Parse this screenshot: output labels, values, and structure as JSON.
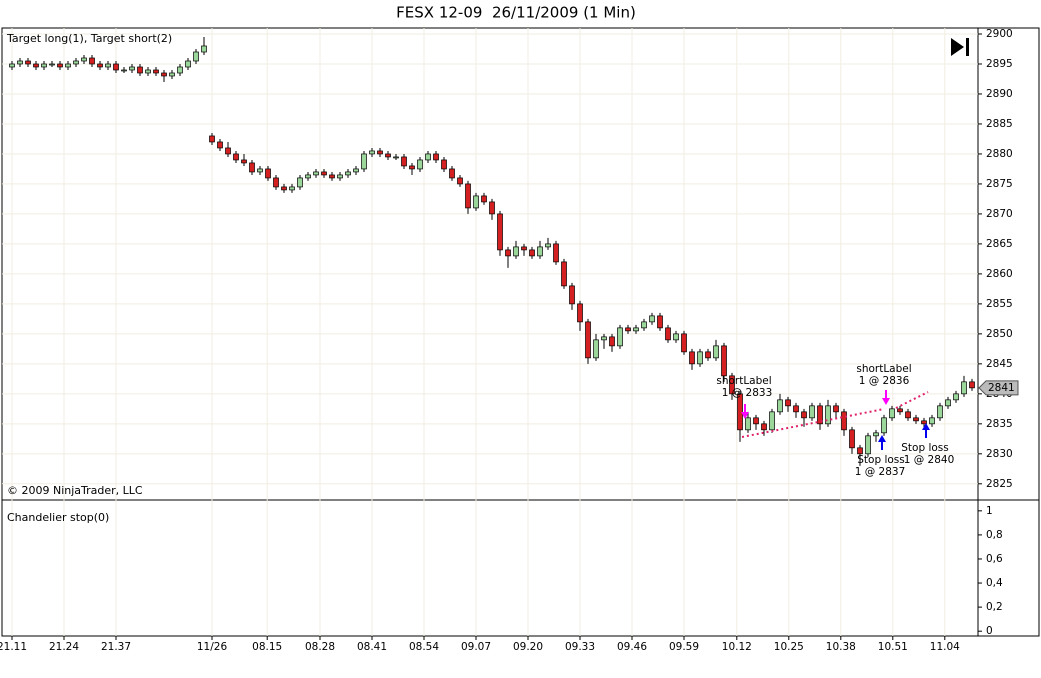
{
  "chart_data": [
    {
      "type": "candlestick",
      "title": "FESX 12-09  26/11/2009 (1 Min)",
      "subtitle": "Target long(1), Target short(2)",
      "credit": "© 2009 NinjaTrader, LLC",
      "up_color": "#9bd69b",
      "down_color": "#d42020",
      "last_price": 2841,
      "annotations": [
        "shortLabel",
        "1 @ 2833",
        "shortLabel",
        "1 @ 2836",
        "Stop loss",
        "1 @ 2837",
        "Stop loss",
        "1 @ 2840"
      ],
      "xlim": [
        -1.25,
        120.75
      ],
      "xticks": [
        {
          "value": 0,
          "label": "21.11"
        },
        {
          "value": 6.5,
          "label": "21.24"
        },
        {
          "value": 13,
          "label": "21.37"
        },
        {
          "value": 25,
          "label": "11/26"
        },
        {
          "value": 31.9,
          "label": "08.15"
        },
        {
          "value": 38.5,
          "label": "08.28"
        },
        {
          "value": 45,
          "label": "08.41"
        },
        {
          "value": 51.5,
          "label": "08.54"
        },
        {
          "value": 58,
          "label": "09.07"
        },
        {
          "value": 64.5,
          "label": "09.20"
        },
        {
          "value": 71,
          "label": "09.33"
        },
        {
          "value": 77.5,
          "label": "09.46"
        },
        {
          "value": 84,
          "label": "09.59"
        },
        {
          "value": 90.6,
          "label": "10.12"
        },
        {
          "value": 97.1,
          "label": "10.25"
        },
        {
          "value": 103.6,
          "label": "10.38"
        },
        {
          "value": 110.1,
          "label": "10.51"
        },
        {
          "value": 116.6,
          "label": "11.04"
        }
      ],
      "ylim": [
        2822.3,
        2901
      ],
      "yticks": [
        2825,
        2830,
        2835,
        2840,
        2845,
        2850,
        2855,
        2860,
        2865,
        2870,
        2875,
        2880,
        2885,
        2890,
        2895,
        2900
      ],
      "grid": true,
      "open": [
        2894.5,
        2895,
        2895.5,
        2895,
        2894.5,
        2895,
        2895,
        2894.5,
        2895,
        2895.5,
        2896,
        2895,
        2894.5,
        2895,
        2894,
        2894,
        2894.5,
        2893.5,
        2894,
        2893.5,
        2893,
        2893.5,
        2894.5,
        2895.5,
        2897,
        2883,
        2882,
        2881,
        2880,
        2879,
        2878.5,
        2877,
        2877.5,
        2876,
        2874.5,
        2874,
        2874.5,
        2876,
        2876.5,
        2877,
        2876.5,
        2876,
        2876.5,
        2877,
        2877.5,
        2880,
        2880.5,
        2880,
        2879.5,
        2879.5,
        2878,
        2877.5,
        2879,
        2880,
        2879,
        2877.5,
        2876,
        2875,
        2871,
        2873,
        2872,
        2870,
        2864,
        2863,
        2864.5,
        2864,
        2863,
        2864.5,
        2865,
        2862,
        2858,
        2855,
        2852,
        2846,
        2849,
        2849.5,
        2848,
        2851,
        2850.5,
        2851,
        2852,
        2853,
        2851,
        2849,
        2850,
        2847,
        2845,
        2847,
        2846,
        2848,
        2843,
        2840,
        2834,
        2836,
        2835,
        2834,
        2837,
        2839,
        2838,
        2837,
        2836,
        2838,
        2835,
        2838,
        2837,
        2834,
        2831,
        2830,
        2833,
        2833.5,
        2836,
        2837.5,
        2837,
        2836,
        2835.5,
        2835,
        2836,
        2838,
        2839,
        2840,
        2842
      ],
      "high": [
        2895.5,
        2896,
        2896,
        2895.5,
        2895.5,
        2895.5,
        2895.5,
        2895.5,
        2896,
        2896.5,
        2896.5,
        2895.5,
        2895.5,
        2895.5,
        2894.5,
        2895,
        2895,
        2894.5,
        2894.5,
        2894,
        2894,
        2895,
        2896,
        2897.5,
        2899.5,
        2883.5,
        2882.5,
        2882,
        2880.5,
        2880,
        2879,
        2878,
        2878,
        2876.5,
        2875,
        2875,
        2876.5,
        2877,
        2877.5,
        2877.5,
        2877,
        2877,
        2877.5,
        2878,
        2880.5,
        2881,
        2881,
        2880.5,
        2880,
        2880,
        2878.5,
        2879.5,
        2880.5,
        2880.5,
        2879.5,
        2878,
        2876.5,
        2875.5,
        2873.5,
        2873.5,
        2872.5,
        2870.5,
        2864.5,
        2865.5,
        2865,
        2864.5,
        2865.5,
        2866,
        2865.5,
        2862.5,
        2858.5,
        2855.5,
        2852.5,
        2850,
        2850,
        2850,
        2851.5,
        2851.5,
        2851.5,
        2852.5,
        2853.5,
        2853.5,
        2851.5,
        2850.5,
        2850.5,
        2847.5,
        2847.5,
        2847.5,
        2849,
        2848.5,
        2843.5,
        2840.5,
        2837,
        2836.5,
        2835.5,
        2837.5,
        2840,
        2839.5,
        2838.5,
        2837.5,
        2838.5,
        2838.5,
        2839,
        2838.5,
        2837.5,
        2834.5,
        2831.5,
        2833.5,
        2834,
        2836.5,
        2838,
        2838,
        2837.5,
        2836.5,
        2836,
        2836.5,
        2838.5,
        2839.5,
        2840.5,
        2843,
        2842.5
      ],
      "low": [
        2894,
        2894.5,
        2894.5,
        2894,
        2894,
        2894.5,
        2894,
        2894,
        2894.5,
        2895,
        2894.5,
        2894,
        2894,
        2893.5,
        2893.5,
        2893.5,
        2893,
        2893,
        2893,
        2892,
        2892.5,
        2893,
        2894,
        2895,
        2896.5,
        2881.5,
        2880.5,
        2879.5,
        2878.5,
        2878,
        2876.5,
        2876.5,
        2875.5,
        2874,
        2873.5,
        2873.5,
        2874,
        2875.5,
        2876,
        2876,
        2875.5,
        2875.5,
        2876,
        2876.5,
        2877,
        2879.5,
        2879.5,
        2879,
        2879,
        2877.5,
        2876.5,
        2877,
        2878.5,
        2878.5,
        2877,
        2875.5,
        2874.5,
        2870,
        2870.5,
        2871.5,
        2869,
        2863,
        2861,
        2862.5,
        2863,
        2862.5,
        2862.5,
        2864,
        2861.5,
        2857.5,
        2854,
        2850.5,
        2845,
        2845.5,
        2847.5,
        2847,
        2847.5,
        2850,
        2850,
        2850.5,
        2851.5,
        2850.5,
        2848.5,
        2848.5,
        2846.5,
        2844,
        2844.5,
        2845.5,
        2845.5,
        2842,
        2839,
        2832,
        2833.5,
        2834,
        2833,
        2833.5,
        2836.5,
        2837,
        2836,
        2834.5,
        2835.5,
        2834,
        2834.5,
        2836,
        2833,
        2830,
        2828,
        2829.5,
        2832,
        2833,
        2835.5,
        2836.5,
        2835.5,
        2835,
        2834.5,
        2834.5,
        2835.5,
        2837.5,
        2838.5,
        2839.5,
        2840.5
      ],
      "close": [
        2895,
        2895.5,
        2895,
        2894.5,
        2895,
        2895,
        2894.5,
        2895,
        2895.5,
        2896,
        2895,
        2894.5,
        2895,
        2894,
        2894,
        2894.5,
        2893.5,
        2894,
        2893.5,
        2893,
        2893.5,
        2894.5,
        2895.5,
        2897,
        2898,
        2882,
        2881,
        2880,
        2879,
        2878.5,
        2877,
        2877.5,
        2876,
        2874.5,
        2874,
        2874.5,
        2876,
        2876.5,
        2877,
        2876.5,
        2876,
        2876.5,
        2877,
        2877.5,
        2880,
        2880.5,
        2880,
        2879.5,
        2879.5,
        2878,
        2877.5,
        2879,
        2880,
        2879,
        2877.5,
        2876,
        2875,
        2871,
        2873,
        2872,
        2870,
        2864,
        2863,
        2864.5,
        2864,
        2863,
        2864.5,
        2865,
        2862,
        2858,
        2855,
        2852,
        2846,
        2849,
        2849.5,
        2848,
        2851,
        2850.5,
        2851,
        2852,
        2853,
        2851,
        2849,
        2850,
        2847,
        2845,
        2847,
        2846,
        2848,
        2843,
        2840,
        2834,
        2836,
        2835,
        2834,
        2837,
        2839,
        2838,
        2837,
        2836,
        2838,
        2835,
        2838,
        2837,
        2834,
        2831,
        2830,
        2833,
        2833.5,
        2836,
        2837.5,
        2837,
        2836,
        2835.5,
        2835,
        2836,
        2838,
        2839,
        2840,
        2842,
        2841
      ]
    },
    {
      "type": "indicator",
      "title": "Chandelier stop(0)",
      "ylim": [
        -0.04,
        1.09
      ],
      "yticks": [
        0,
        {
          "value": 0.2,
          "label": "0,2"
        },
        {
          "value": 0.4,
          "label": "0,4"
        },
        {
          "value": 0.6,
          "label": "0,6"
        },
        {
          "value": 0.8,
          "label": "0,8"
        },
        1
      ]
    }
  ]
}
